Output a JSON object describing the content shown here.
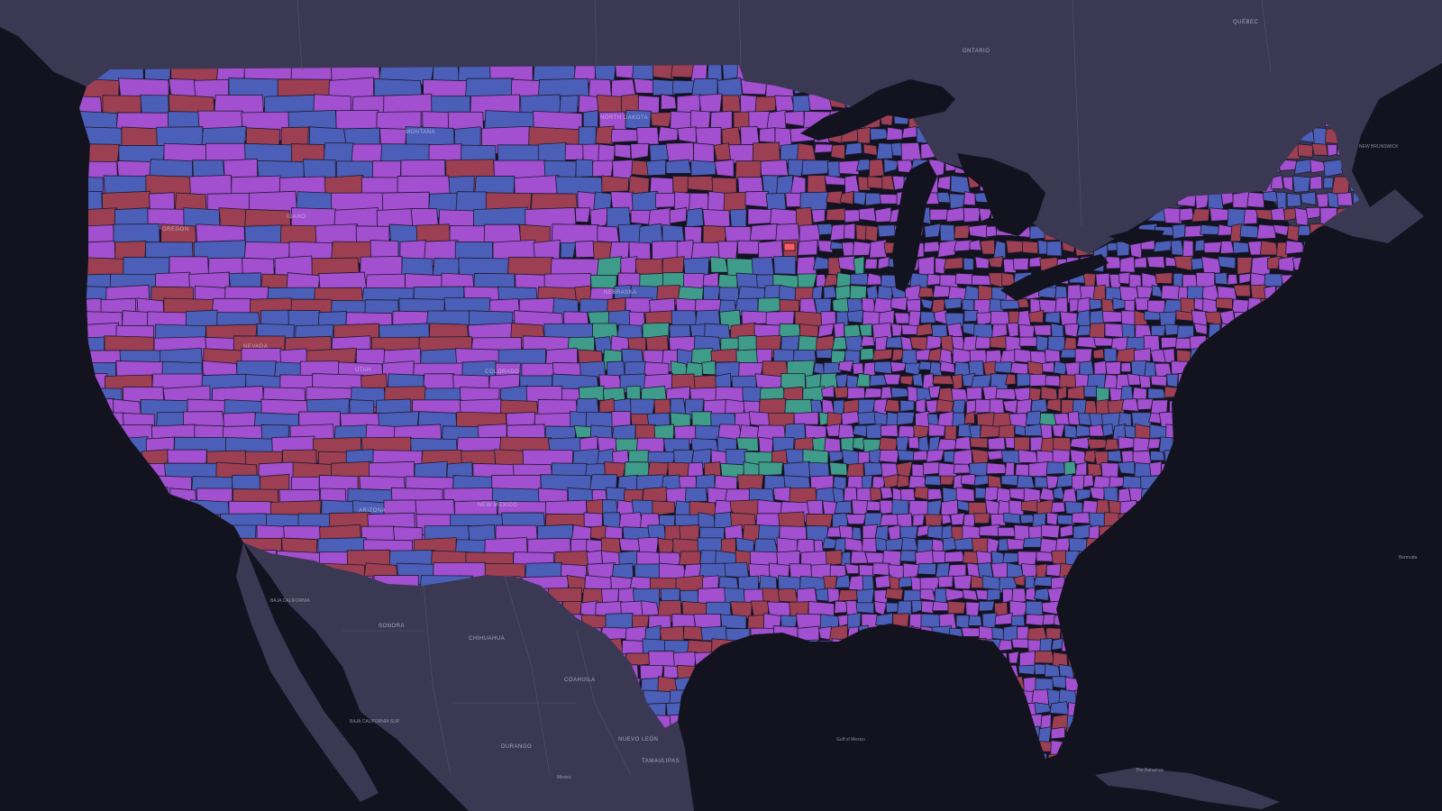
{
  "map": {
    "colors": {
      "ocean": "#13121f",
      "land_foreign": "#3a3853",
      "land_foreign_light": "#45435f",
      "lakes": "#13121f",
      "county_border": "#1c1a2c",
      "category_purple": "#a24fd0",
      "category_blue": "#4b5fb8",
      "category_red": "#9c3f52",
      "category_green": "#3f9c8a",
      "highlight_salmon": "#ff5a64"
    },
    "category_weights": {
      "purple": 0.44,
      "blue": 0.31,
      "red": 0.2,
      "green": 0.05
    },
    "labels": {
      "ontario": "ONTARIO",
      "quebec": "QUÉBEC",
      "new_brunswick": "NEW BRUNSWICK",
      "north_dakota": "NORTH DAKOTA",
      "montana": "MONTANA",
      "idaho": "IDAHO",
      "oregon": "OREGON",
      "nevada": "NEVADA",
      "utah": "UTAH",
      "colorado": "COLORADO",
      "arizona": "ARIZONA",
      "new_mexico": "NEW MEXICO",
      "nebraska": "NEBRASKA",
      "sonora": "SONORA",
      "chihuahua": "CHIHUAHUA",
      "coahuila": "COAHUILA",
      "durango": "DURANGO",
      "nuevo_leon": "NUEVO LEÓN",
      "tamaulipas": "TAMAULIPAS",
      "baja_california": "BAJA CALIFORNIA",
      "baja_california_sur": "BAJA CALIFORNIA SUR",
      "mexico": "Mexico",
      "gulf_of_mexico": "Gulf of Mexico",
      "the_bahamas": "The Bahamas",
      "bermuda": "Bermuda"
    }
  }
}
